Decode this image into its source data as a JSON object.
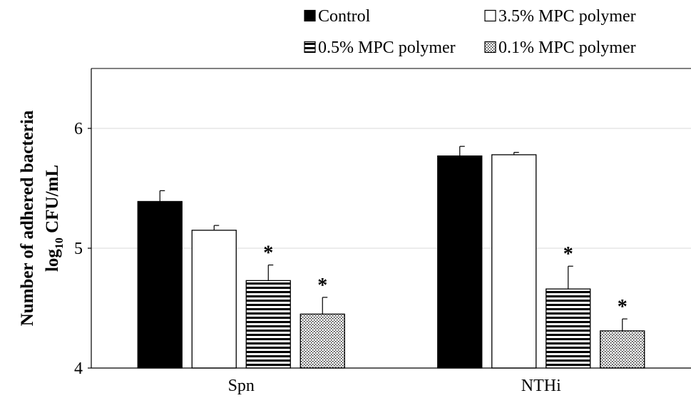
{
  "chart_data": {
    "type": "bar",
    "categories": [
      "Spn",
      "NTHi"
    ],
    "series": [
      {
        "name": "Control",
        "values": [
          5.39,
          5.77
        ],
        "errors": [
          0.09,
          0.08
        ],
        "pattern": "solid-black"
      },
      {
        "name": "3.5% MPC polymer",
        "values": [
          5.15,
          5.78
        ],
        "errors": [
          0.04,
          0.02
        ],
        "pattern": "white"
      },
      {
        "name": "0.5% MPC polymer",
        "values": [
          4.73,
          4.66
        ],
        "errors": [
          0.13,
          0.19
        ],
        "pattern": "horizontal-lines"
      },
      {
        "name": "0.1% MPC polymer",
        "values": [
          4.45,
          4.31
        ],
        "errors": [
          0.14,
          0.1
        ],
        "pattern": "dots"
      }
    ],
    "significance": [
      {
        "series": 2,
        "category": 0,
        "label": "*"
      },
      {
        "series": 3,
        "category": 0,
        "label": "*"
      },
      {
        "series": 2,
        "category": 1,
        "label": "*"
      },
      {
        "series": 3,
        "category": 1,
        "label": "*"
      }
    ],
    "ylabel_line1": "Number of adhered bacteria",
    "ylabel_line2_base": "log",
    "ylabel_line2_sub": "10",
    "ylabel_line2_rest": " CFU/mL",
    "ylim": [
      4,
      6.5
    ],
    "yticks": [
      4,
      5,
      6
    ],
    "ytick_labels": [
      "4",
      "5",
      "6"
    ],
    "grid": true,
    "legend_position": "top-right"
  },
  "colors": {
    "bar_stroke": "#000000",
    "grid": "#d9d9d9",
    "axis": "#000000"
  }
}
